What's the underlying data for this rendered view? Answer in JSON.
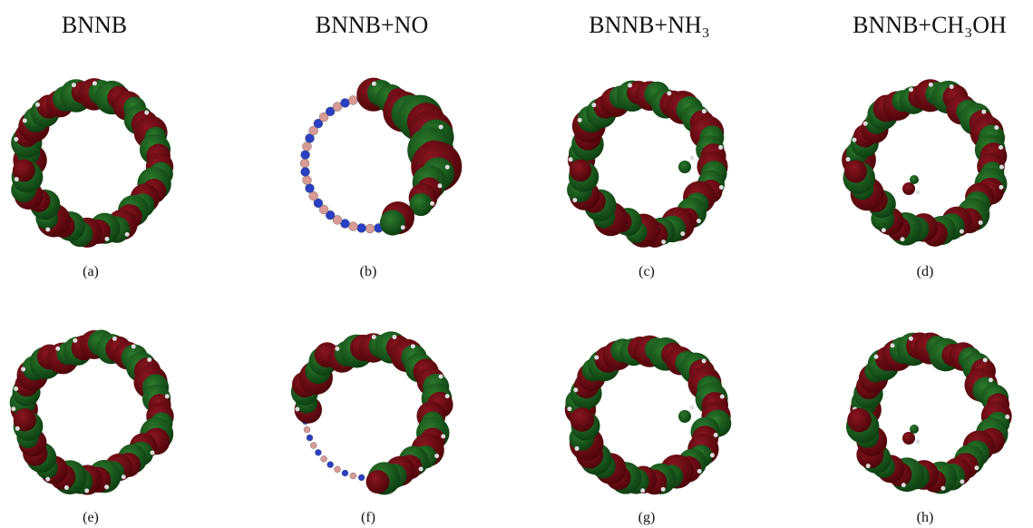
{
  "headers": [
    "BNNB",
    "BNNB+NO",
    "BNNB+NH₃",
    "BNNB+CH₃OH"
  ],
  "panels": [
    "(a)",
    "(b)",
    "(c)",
    "(d)",
    "(e)",
    "(f)",
    "(g)",
    "(h)"
  ]
}
